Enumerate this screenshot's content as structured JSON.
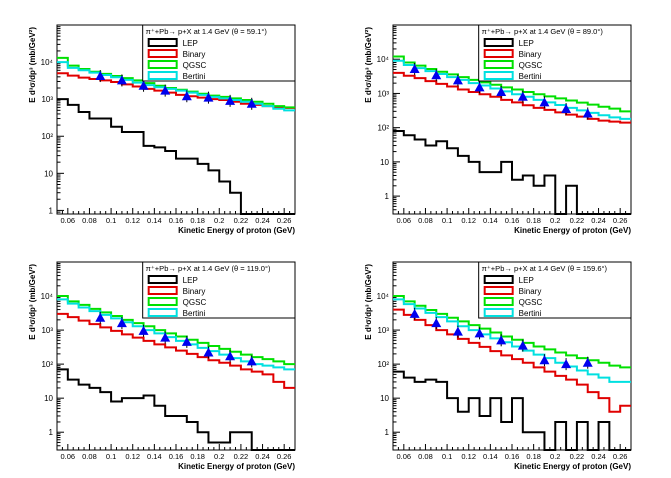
{
  "figure": {
    "panels_description": "4 histogram panels, pi+ Pb -> p X at 1.4 GeV"
  },
  "styles": {
    "series_colors": {
      "LEP": "#000000",
      "Binary": "#e00000",
      "QGSC": "#00e000",
      "Bertini": "#00e0e0"
    },
    "data_marker_color": "#0000ee",
    "frame_color": "#000000",
    "background": "#ffffff"
  },
  "chart_data": [
    {
      "type": "line",
      "title": "π⁺+Pb→ p+X at 1.4 GeV (θ = 59.1°)",
      "xlabel": "Kinetic Energy of proton (GeV)",
      "ylabel": "E d³σ/dp³ (mb/GeV²)",
      "xlim": [
        0.05,
        0.27
      ],
      "ylim": [
        0.8,
        100000
      ],
      "yscale": "log",
      "x_ticks": [
        "0.06",
        "0.08",
        "0.1",
        "0.12",
        "0.14",
        "0.16",
        "0.18",
        "0.2",
        "0.22",
        "0.24",
        "0.26"
      ],
      "y_ticks": [
        "1",
        "10",
        "10²",
        "10³",
        "10⁴"
      ],
      "bin_edges": [
        0.05,
        0.06,
        0.07,
        0.08,
        0.09,
        0.1,
        0.11,
        0.12,
        0.13,
        0.14,
        0.15,
        0.16,
        0.17,
        0.18,
        0.19,
        0.2,
        0.21,
        0.22,
        0.23,
        0.24,
        0.25,
        0.26,
        0.27
      ],
      "legend": [
        "LEP",
        "Binary",
        "QGSC",
        "Bertini"
      ],
      "series": [
        {
          "name": "LEP",
          "values": [
            1000,
            700,
            450,
            300,
            300,
            180,
            130,
            130,
            55,
            50,
            40,
            25,
            25,
            18,
            12,
            6,
            3,
            0,
            0,
            0,
            0,
            0
          ]
        },
        {
          "name": "Binary",
          "values": [
            5000,
            4300,
            3800,
            3500,
            3200,
            2900,
            2500,
            2200,
            1900,
            1700,
            1500,
            1300,
            1200,
            1100,
            1000,
            950,
            850,
            750,
            700,
            650,
            600,
            580
          ]
        },
        {
          "name": "QGSC",
          "values": [
            13000,
            8000,
            6500,
            5500,
            4800,
            4200,
            3700,
            3200,
            2700,
            2300,
            2000,
            1800,
            1600,
            1400,
            1250,
            1150,
            1050,
            950,
            850,
            750,
            650,
            600
          ]
        },
        {
          "name": "Bertini",
          "values": [
            10000,
            7000,
            6000,
            5200,
            4500,
            3900,
            3300,
            2800,
            2400,
            2100,
            1900,
            1700,
            1500,
            1300,
            1150,
            1050,
            950,
            850,
            750,
            650,
            550,
            500
          ]
        },
        {
          "name": "data",
          "x": [
            0.09,
            0.11,
            0.13,
            0.15,
            0.17,
            0.19,
            0.21,
            0.23
          ],
          "values": [
            4200,
            3200,
            2300,
            1700,
            1200,
            1100,
            900,
            750
          ]
        }
      ]
    },
    {
      "type": "line",
      "title": "π⁺+Pb→ p+X at 1.4 GeV (θ = 89.0°)",
      "xlabel": "Kinetic Energy of proton (GeV)",
      "ylabel": "E d³σ/dp³ (mb/GeV²)",
      "xlim": [
        0.05,
        0.27
      ],
      "ylim": [
        0.3,
        100000
      ],
      "yscale": "log",
      "x_ticks": [
        "0.06",
        "0.08",
        "0.1",
        "0.12",
        "0.14",
        "0.16",
        "0.18",
        "0.2",
        "0.22",
        "0.24",
        "0.26"
      ],
      "y_ticks": [
        "1",
        "10",
        "10²",
        "10³",
        "10⁴"
      ],
      "bin_edges": [
        0.05,
        0.06,
        0.07,
        0.08,
        0.09,
        0.1,
        0.11,
        0.12,
        0.13,
        0.14,
        0.15,
        0.16,
        0.17,
        0.18,
        0.19,
        0.2,
        0.21,
        0.22,
        0.23,
        0.24,
        0.25,
        0.26,
        0.27
      ],
      "legend": [
        "LEP",
        "Binary",
        "QGSC",
        "Bertini"
      ],
      "series": [
        {
          "name": "LEP",
          "values": [
            80,
            60,
            45,
            30,
            40,
            25,
            15,
            10,
            5,
            5,
            10,
            3,
            4,
            2,
            4,
            0,
            2,
            0,
            0,
            0,
            0,
            0
          ]
        },
        {
          "name": "Binary",
          "values": [
            4000,
            3300,
            2800,
            2300,
            1900,
            1600,
            1300,
            1100,
            950,
            800,
            650,
            550,
            450,
            380,
            330,
            280,
            240,
            210,
            180,
            160,
            150,
            140
          ]
        },
        {
          "name": "QGSC",
          "values": [
            12000,
            8000,
            6500,
            5200,
            4300,
            3600,
            3000,
            2500,
            2100,
            1800,
            1500,
            1300,
            1100,
            950,
            820,
            720,
            620,
            540,
            470,
            410,
            360,
            300
          ]
        },
        {
          "name": "Bertini",
          "values": [
            9000,
            6800,
            5500,
            4500,
            3700,
            3000,
            2500,
            2000,
            1700,
            1400,
            1150,
            950,
            800,
            650,
            550,
            460,
            380,
            320,
            270,
            230,
            200,
            180
          ]
        },
        {
          "name": "data",
          "x": [
            0.07,
            0.09,
            0.11,
            0.13,
            0.15,
            0.17,
            0.19,
            0.21,
            0.23
          ],
          "values": [
            5200,
            3400,
            2400,
            1500,
            1100,
            800,
            550,
            350,
            260
          ]
        }
      ]
    },
    {
      "type": "line",
      "title": "π⁺+Pb→ p+X at 1.4 GeV (θ = 119.0°)",
      "xlabel": "Kinetic Energy of proton (GeV)",
      "ylabel": "E d³σ/dp³ (mb/GeV²)",
      "xlim": [
        0.05,
        0.27
      ],
      "ylim": [
        0.3,
        100000
      ],
      "yscale": "log",
      "x_ticks": [
        "0.06",
        "0.08",
        "0.1",
        "0.12",
        "0.14",
        "0.16",
        "0.18",
        "0.2",
        "0.22",
        "0.24",
        "0.26"
      ],
      "y_ticks": [
        "1",
        "10",
        "10²",
        "10³",
        "10⁴"
      ],
      "bin_edges": [
        0.05,
        0.06,
        0.07,
        0.08,
        0.09,
        0.1,
        0.11,
        0.12,
        0.13,
        0.14,
        0.15,
        0.16,
        0.17,
        0.18,
        0.19,
        0.2,
        0.21,
        0.22,
        0.23,
        0.24,
        0.25,
        0.26,
        0.27
      ],
      "legend": [
        "LEP",
        "Binary",
        "QGSC",
        "Bertini"
      ],
      "series": [
        {
          "name": "LEP",
          "values": [
            70,
            35,
            25,
            20,
            15,
            8,
            10,
            10,
            12,
            6,
            3,
            3,
            2,
            1,
            0.5,
            0.5,
            1,
            1,
            0,
            0,
            0,
            0
          ]
        },
        {
          "name": "Binary",
          "values": [
            3000,
            2400,
            1900,
            1500,
            1200,
            950,
            750,
            600,
            480,
            380,
            310,
            250,
            200,
            160,
            130,
            110,
            90,
            70,
            60,
            50,
            30,
            20
          ]
        },
        {
          "name": "QGSC",
          "values": [
            10000,
            7000,
            5500,
            4200,
            3300,
            2600,
            2000,
            1600,
            1300,
            1000,
            800,
            650,
            520,
            420,
            340,
            280,
            230,
            190,
            160,
            140,
            120,
            100
          ]
        },
        {
          "name": "Bertini",
          "values": [
            8000,
            6000,
            4600,
            3600,
            2800,
            2200,
            1700,
            1300,
            1000,
            800,
            620,
            480,
            380,
            300,
            240,
            190,
            150,
            120,
            100,
            90,
            80,
            70
          ]
        },
        {
          "name": "data",
          "x": [
            0.09,
            0.11,
            0.13,
            0.15,
            0.17,
            0.19,
            0.21,
            0.23
          ],
          "values": [
            2300,
            1600,
            950,
            600,
            450,
            220,
            170,
            120
          ]
        }
      ]
    },
    {
      "type": "line",
      "title": "π⁺+Pb→ p+X at 1.4 GeV (θ = 159.6°)",
      "xlabel": "Kinetic Energy of proton (GeV)",
      "ylabel": "E d³σ/dp³ (mb/GeV²)",
      "xlim": [
        0.05,
        0.27
      ],
      "ylim": [
        0.3,
        100000
      ],
      "yscale": "log",
      "x_ticks": [
        "0.06",
        "0.08",
        "0.1",
        "0.12",
        "0.14",
        "0.16",
        "0.18",
        "0.2",
        "0.22",
        "0.24",
        "0.26"
      ],
      "y_ticks": [
        "1",
        "10",
        "10²",
        "10³",
        "10⁴"
      ],
      "bin_edges": [
        0.05,
        0.06,
        0.07,
        0.08,
        0.09,
        0.1,
        0.11,
        0.12,
        0.13,
        0.14,
        0.15,
        0.16,
        0.17,
        0.18,
        0.19,
        0.2,
        0.21,
        0.22,
        0.23,
        0.24,
        0.25,
        0.26,
        0.27
      ],
      "legend": [
        "LEP",
        "Binary",
        "QGSC",
        "Bertini"
      ],
      "series": [
        {
          "name": "LEP",
          "values": [
            60,
            40,
            30,
            35,
            30,
            10,
            4,
            10,
            3,
            10,
            2,
            10,
            1,
            1,
            0,
            2,
            0,
            2,
            0,
            2,
            0,
            0
          ]
        },
        {
          "name": "Binary",
          "values": [
            4000,
            2800,
            2000,
            1400,
            1000,
            750,
            550,
            420,
            320,
            240,
            180,
            140,
            110,
            80,
            60,
            45,
            35,
            25,
            15,
            10,
            4,
            6
          ]
        },
        {
          "name": "QGSC",
          "values": [
            10000,
            7000,
            5200,
            3900,
            3000,
            2300,
            1800,
            1400,
            1100,
            850,
            650,
            520,
            420,
            330,
            270,
            220,
            180,
            150,
            130,
            110,
            90,
            80
          ]
        },
        {
          "name": "Bertini",
          "values": [
            8000,
            5800,
            4300,
            3200,
            2400,
            1800,
            1300,
            1000,
            750,
            570,
            440,
            330,
            250,
            190,
            150,
            110,
            85,
            65,
            50,
            40,
            30,
            30
          ]
        },
        {
          "name": "data",
          "x": [
            0.07,
            0.09,
            0.11,
            0.13,
            0.15,
            0.17,
            0.19,
            0.21,
            0.23
          ],
          "values": [
            3000,
            1600,
            900,
            800,
            500,
            350,
            130,
            100,
            110
          ]
        }
      ]
    }
  ]
}
